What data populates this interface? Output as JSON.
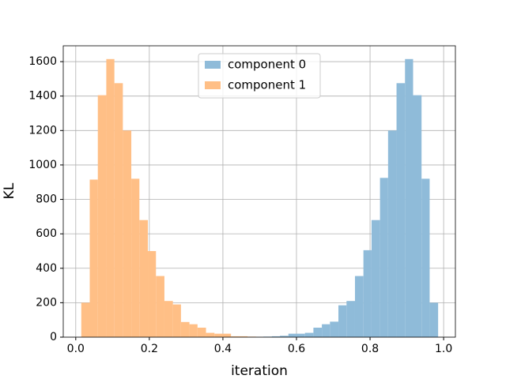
{
  "chart_data": {
    "type": "histogram",
    "xlabel": "iteration",
    "ylabel": "KL",
    "series": [
      {
        "name": "component 0",
        "color": "#8fbbd9",
        "bins": [
          0.51,
          0.533,
          0.555,
          0.578,
          0.601,
          0.623,
          0.646,
          0.669,
          0.691,
          0.714,
          0.736,
          0.759,
          0.782,
          0.804,
          0.827,
          0.849,
          0.872,
          0.895,
          0.917,
          0.94,
          0.962,
          0.985
        ],
        "values": [
          3,
          5,
          8,
          20,
          20,
          25,
          55,
          75,
          90,
          185,
          210,
          355,
          505,
          680,
          925,
          1200,
          1475,
          1615,
          1405,
          920,
          200
        ]
      },
      {
        "name": "component 1",
        "color": "#ffbf86",
        "bins": [
          0.015,
          0.038,
          0.06,
          0.083,
          0.105,
          0.128,
          0.151,
          0.173,
          0.196,
          0.218,
          0.241,
          0.264,
          0.286,
          0.309,
          0.331,
          0.354,
          0.377,
          0.399,
          0.422,
          0.445,
          0.467,
          0.49
        ],
        "values": [
          200,
          915,
          1405,
          1615,
          1475,
          1200,
          920,
          680,
          500,
          355,
          210,
          190,
          88,
          75,
          55,
          25,
          20,
          20,
          5,
          5,
          3
        ]
      }
    ],
    "xlim": [
      -0.034,
      1.032
    ],
    "xticks": [
      {
        "value": 0,
        "label": "0.0"
      },
      0.2,
      0.4,
      0.6,
      0.8,
      {
        "value": 1,
        "label": "1.0"
      }
    ],
    "ylim": [
      0,
      1692
    ],
    "yticks": [
      0,
      200,
      400,
      600,
      800,
      1000,
      1200,
      1400,
      1600
    ],
    "grid": true,
    "legend": "upper center"
  }
}
